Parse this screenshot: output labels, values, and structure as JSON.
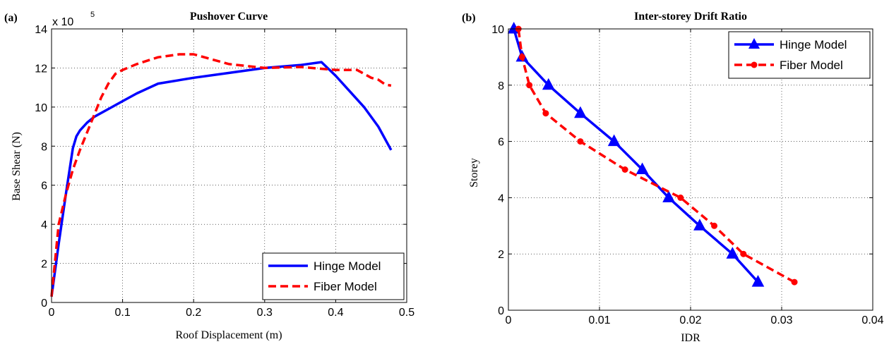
{
  "chart_data": [
    {
      "panel_label": "(a)",
      "type": "line",
      "title": "Pushover Curve",
      "xlabel": "Roof Displacement (m)",
      "ylabel": "Base Shear (N)",
      "y_scale_label": "x 10",
      "y_scale_exponent": "5",
      "xlim": [
        0,
        0.5
      ],
      "ylim": [
        0,
        14
      ],
      "xticks": [
        0,
        0.1,
        0.2,
        0.3,
        0.4,
        0.5
      ],
      "xtick_labels": [
        "0",
        "0.1",
        "0.2",
        "0.3",
        "0.4",
        "0.5"
      ],
      "yticks": [
        0,
        2,
        4,
        6,
        8,
        10,
        12,
        14
      ],
      "ytick_labels": [
        "0",
        "2",
        "4",
        "6",
        "8",
        "10",
        "12",
        "14"
      ],
      "grid": true,
      "legend_position": "bottom-right",
      "series": [
        {
          "name": "Hinge Model",
          "color": "#0000ff",
          "style": "solid",
          "x": [
            0,
            0.01,
            0.02,
            0.03,
            0.035,
            0.04,
            0.05,
            0.06,
            0.08,
            0.1,
            0.12,
            0.15,
            0.2,
            0.25,
            0.3,
            0.35,
            0.38,
            0.4,
            0.42,
            0.44,
            0.46,
            0.478
          ],
          "y": [
            0.3,
            3.0,
            5.5,
            7.9,
            8.5,
            8.8,
            9.2,
            9.5,
            9.9,
            10.3,
            10.7,
            11.2,
            11.5,
            11.75,
            12.0,
            12.15,
            12.3,
            11.6,
            10.8,
            10.0,
            9.0,
            7.8
          ]
        },
        {
          "name": "Fiber Model",
          "color": "#ff0000",
          "style": "dashed",
          "x": [
            0,
            0.01,
            0.02,
            0.03,
            0.04,
            0.05,
            0.06,
            0.07,
            0.08,
            0.09,
            0.1,
            0.12,
            0.15,
            0.18,
            0.2,
            0.22,
            0.25,
            0.3,
            0.35,
            0.4,
            0.43,
            0.44,
            0.45,
            0.46,
            0.47,
            0.478
          ],
          "y": [
            0.3,
            4.0,
            5.5,
            6.8,
            7.8,
            8.7,
            9.6,
            10.5,
            11.2,
            11.7,
            11.9,
            12.2,
            12.55,
            12.7,
            12.7,
            12.5,
            12.2,
            12.0,
            12.05,
            11.9,
            11.9,
            11.7,
            11.5,
            11.4,
            11.15,
            11.1
          ]
        }
      ]
    },
    {
      "panel_label": "(b)",
      "type": "line",
      "title": "Inter-storey Drift Ratio",
      "xlabel": "IDR",
      "ylabel": "Storey",
      "xlim": [
        0,
        0.04
      ],
      "ylim": [
        0,
        10
      ],
      "xticks": [
        0,
        0.01,
        0.02,
        0.03,
        0.04
      ],
      "xtick_labels": [
        "0",
        "0.01",
        "0.02",
        "0.03",
        "0.04"
      ],
      "yticks": [
        0,
        2,
        4,
        6,
        8,
        10
      ],
      "ytick_labels": [
        "0",
        "2",
        "4",
        "6",
        "8",
        "10"
      ],
      "grid": true,
      "legend_position": "top-right",
      "series": [
        {
          "name": "Hinge Model",
          "color": "#0000ff",
          "style": "solid",
          "marker": "triangle",
          "x": [
            0.0274,
            0.0246,
            0.021,
            0.0176,
            0.0147,
            0.0116,
            0.0079,
            0.0044,
            0.0015,
            0.0006
          ],
          "y": [
            1,
            2,
            3,
            4,
            5,
            6,
            7,
            8,
            9,
            10
          ]
        },
        {
          "name": "Fiber Model",
          "color": "#ff0000",
          "style": "dashed",
          "marker": "circle",
          "x": [
            0.0314,
            0.0258,
            0.0226,
            0.0189,
            0.0128,
            0.0079,
            0.0041,
            0.0023,
            0.0015,
            0.0011
          ],
          "y": [
            1,
            2,
            3,
            4,
            5,
            6,
            7,
            8,
            9,
            10
          ]
        }
      ]
    }
  ]
}
